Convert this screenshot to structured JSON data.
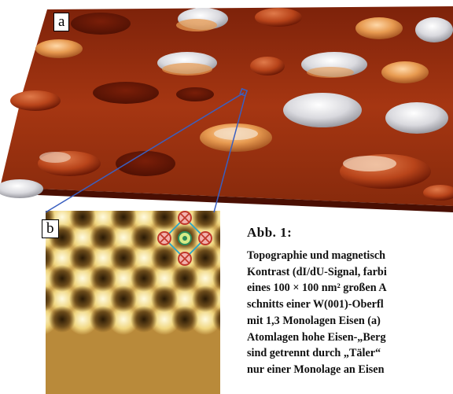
{
  "figure": {
    "panel_a_label": "a",
    "panel_b_label": "b",
    "caption_title": "Abb. 1:",
    "caption_lines": [
      "Topographie und magnetisch",
      "Kontrast (dI/dU-Signal, farbi",
      "eines 100 × 100 nm² großen A",
      "schnitts einer W(001)-Oberfl",
      "mit 1,3 Monolagen Eisen (a)",
      "Atomlagen hohe Eisen-„Berg",
      "sind getrennt durch „Täler“",
      "nur einer Monolage an Eisen"
    ]
  },
  "colors": {
    "substrate": "#9a2c0c",
    "substrate_dark": "#5e1606",
    "island_white": "#e8e8ec",
    "island_orange": "#e79a50",
    "marker_ring": "#c0392b",
    "marker_fill": "#f3b2ad",
    "center_ring": "#2e8b57",
    "center_fill": "#d6eb87",
    "connector": "#3a5fc0",
    "cell_edge": "#2aa6c8"
  },
  "icons": {
    "spin_down": "circle-cross-icon",
    "spin_up": "circle-dot-icon"
  }
}
